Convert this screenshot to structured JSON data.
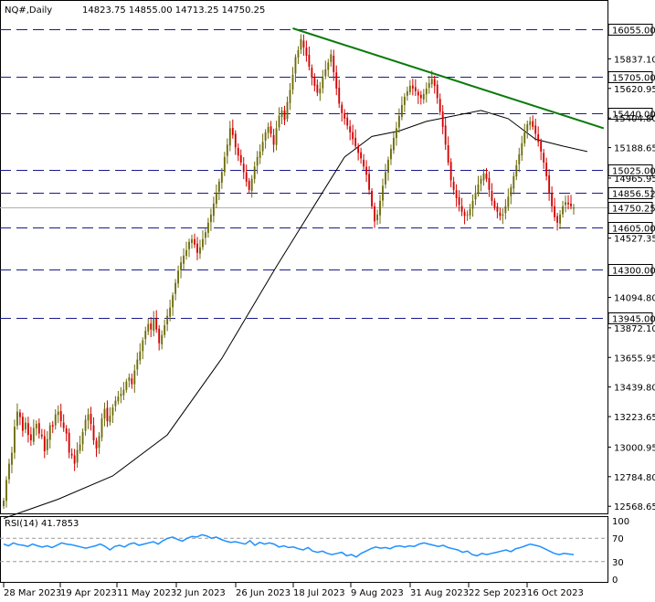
{
  "header": {
    "symbol": "NQ#,Daily",
    "ohlc": "14823.75 14855.00 14713.25 14750.25"
  },
  "rsi": {
    "label": "RSI(14) 41.7853",
    "period": 14,
    "levels": [
      30,
      70
    ],
    "scale_ticks": [
      "100",
      "70",
      "30",
      "0"
    ],
    "series": [
      60,
      57,
      62,
      59,
      58,
      56,
      60,
      57,
      55,
      57,
      54,
      58,
      62,
      60,
      59,
      57,
      55,
      53,
      55,
      57,
      60,
      56,
      50,
      56,
      58,
      55,
      60,
      62,
      58,
      60,
      62,
      64,
      60,
      66,
      70,
      72,
      68,
      65,
      70,
      73,
      72,
      76,
      74,
      70,
      72,
      68,
      65,
      63,
      64,
      62,
      60,
      66,
      58,
      63,
      60,
      62,
      60,
      55,
      57,
      54,
      55,
      52,
      50,
      54,
      48,
      46,
      48,
      44,
      42,
      44,
      46,
      40,
      42,
      38,
      44,
      48,
      52,
      55,
      53,
      54,
      52,
      56,
      57,
      55,
      57,
      56,
      60,
      62,
      60,
      58,
      56,
      58,
      54,
      52,
      50,
      46,
      48,
      42,
      40,
      44,
      42,
      44,
      46,
      48,
      50,
      47,
      52,
      54,
      57,
      60,
      58,
      56,
      52,
      48,
      44,
      42,
      44,
      43,
      42
    ],
    "color": "#1e90ff"
  },
  "chart_data": {
    "type": "candlestick",
    "timeframe": "Daily",
    "ylim": [
      12530,
      16120
    ],
    "x_tick_labels": [
      "28 Mar 2023",
      "19 Apr 2023",
      "11 May 2023",
      "2 Jun 2023",
      "26 Jun 2023",
      "18 Jul 2023",
      "9 Aug 2023",
      "31 Aug 2023",
      "22 Sep 2023",
      "16 Oct 2023"
    ],
    "y_tick_labels": [
      "15837.10",
      "15620.95",
      "15404.80",
      "15188.65",
      "14965.95",
      "14527.35",
      "14094.80",
      "13872.10",
      "13655.95",
      "13439.80",
      "13223.65",
      "13000.95",
      "12784.80",
      "12568.65"
    ],
    "y_ticks": [
      15837.1,
      15620.95,
      15404.8,
      15188.65,
      14965.95,
      14527.35,
      14094.8,
      13872.1,
      13655.95,
      13439.8,
      13223.65,
      13000.95,
      12784.8,
      12568.65
    ],
    "levels": [
      {
        "value": 16055.0,
        "label": "16055.00"
      },
      {
        "value": 15705.0,
        "label": "15705.00"
      },
      {
        "value": 15440.0,
        "label": "15440.00"
      },
      {
        "value": 15025.0,
        "label": "15025.00"
      },
      {
        "value": 14856.52,
        "label": "14856.52"
      },
      {
        "value": 14605.0,
        "label": "14605.00"
      },
      {
        "value": 14300.0,
        "label": "14300.00"
      },
      {
        "value": 13945.0,
        "label": "13945.00"
      }
    ],
    "current_price": {
      "value": 14750.25,
      "label": "14750.25"
    },
    "trendline": {
      "from": {
        "bar": 106,
        "price": 16060
      },
      "to": {
        "bar": 220,
        "price": 15330
      },
      "color": "#0a7a0a"
    },
    "closes": [
      12610,
      12760,
      12880,
      12960,
      13150,
      13260,
      13220,
      13120,
      13180,
      13090,
      13050,
      13140,
      13170,
      13100,
      13080,
      12970,
      13060,
      13160,
      13150,
      13240,
      13260,
      13190,
      13140,
      13100,
      12960,
      12940,
      12880,
      12980,
      13020,
      13110,
      13200,
      13240,
      13170,
      13050,
      12990,
      13080,
      13210,
      13280,
      13190,
      13230,
      13290,
      13340,
      13370,
      13390,
      13420,
      13480,
      13510,
      13460,
      13560,
      13640,
      13700,
      13780,
      13850,
      13900,
      13860,
      13940,
      13860,
      13760,
      13820,
      13890,
      13960,
      14020,
      14110,
      14200,
      14290,
      14350,
      14400,
      14440,
      14500,
      14520,
      14480,
      14420,
      14460,
      14520,
      14570,
      14640,
      14700,
      14780,
      14860,
      14940,
      15010,
      15120,
      15210,
      15330,
      15280,
      15190,
      15130,
      15080,
      15010,
      14940,
      14880,
      14960,
      15050,
      15120,
      15160,
      15230,
      15300,
      15340,
      15290,
      15210,
      15330,
      15420,
      15460,
      15390,
      15520,
      15610,
      15720,
      15850,
      15900,
      15980,
      15920,
      15860,
      15780,
      15700,
      15640,
      15590,
      15620,
      15700,
      15760,
      15810,
      15870,
      15740,
      15620,
      15510,
      15440,
      15400,
      15350,
      15300,
      15250,
      15200,
      15150,
      15110,
      15050,
      14990,
      14880,
      14760,
      14650,
      14700,
      14800,
      14910,
      15010,
      15100,
      15180,
      15260,
      15330,
      15420,
      15500,
      15560,
      15600,
      15640,
      15620,
      15600,
      15570,
      15550,
      15580,
      15620,
      15660,
      15690,
      15640,
      15550,
      15450,
      15340,
      15210,
      15080,
      14950,
      14880,
      14820,
      14770,
      14720,
      14690,
      14700,
      14740,
      14800,
      14860,
      14920,
      14960,
      15000,
      14960,
      14880,
      14800,
      14750,
      14720,
      14690,
      14700,
      14760,
      14830,
      14900,
      14980,
      15060,
      15140,
      15220,
      15300,
      15360,
      15380,
      15340,
      15290,
      15230,
      15160,
      15080,
      14980,
      14860,
      14760,
      14680,
      14640,
      14700,
      14760,
      14790,
      14775,
      14760,
      14750
    ],
    "ma": {
      "color": "#000000",
      "values": [
        {
          "bar": 0,
          "price": 12480
        },
        {
          "bar": 20,
          "price": 12620
        },
        {
          "bar": 40,
          "price": 12790
        },
        {
          "bar": 60,
          "price": 13090
        },
        {
          "bar": 80,
          "price": 13650
        },
        {
          "bar": 100,
          "price": 14320
        },
        {
          "bar": 115,
          "price": 14800
        },
        {
          "bar": 125,
          "price": 15120
        },
        {
          "bar": 135,
          "price": 15270
        },
        {
          "bar": 145,
          "price": 15310
        },
        {
          "bar": 155,
          "price": 15380
        },
        {
          "bar": 165,
          "price": 15420
        },
        {
          "bar": 175,
          "price": 15460
        },
        {
          "bar": 185,
          "price": 15400
        },
        {
          "bar": 195,
          "price": 15250
        },
        {
          "bar": 205,
          "price": 15200
        },
        {
          "bar": 214,
          "price": 15160
        }
      ]
    }
  }
}
